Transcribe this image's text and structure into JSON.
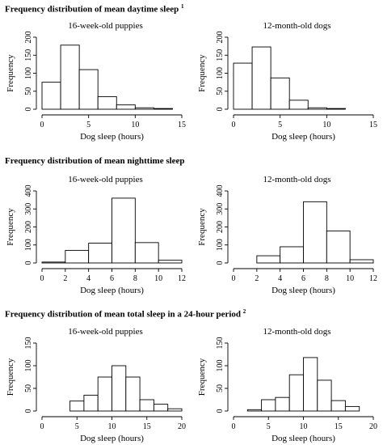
{
  "sections": [
    {
      "title": "Frequency distribution of mean daytime sleep",
      "note": "1"
    },
    {
      "title": "Frequency distribution of mean nighttime sleep",
      "note": ""
    },
    {
      "title": "Frequency distribution of mean total sleep in a 24-hour period",
      "note": "2"
    }
  ],
  "chart_data": [
    {
      "type": "bar",
      "title": "16-week-old puppies",
      "xlabel": "Dog sleep (hours)",
      "ylabel": "Frequency",
      "xlim": [
        0,
        15
      ],
      "ylim": [
        0,
        200
      ],
      "xticks": [
        0,
        5,
        10,
        15
      ],
      "yticks": [
        0,
        50,
        100,
        150,
        200
      ],
      "bins": [
        [
          0,
          2
        ],
        [
          2,
          4
        ],
        [
          4,
          6
        ],
        [
          6,
          8
        ],
        [
          8,
          10
        ],
        [
          10,
          12
        ],
        [
          12,
          14
        ]
      ],
      "values": [
        75,
        178,
        110,
        35,
        12,
        4,
        2
      ]
    },
    {
      "type": "bar",
      "title": "12-month-old dogs",
      "xlabel": "Dog sleep (hours)",
      "ylabel": "Frequency",
      "xlim": [
        0,
        15
      ],
      "ylim": [
        0,
        200
      ],
      "xticks": [
        0,
        5,
        10,
        15
      ],
      "yticks": [
        0,
        50,
        100,
        150,
        200
      ],
      "bins": [
        [
          0,
          2
        ],
        [
          2,
          4
        ],
        [
          4,
          6
        ],
        [
          6,
          8
        ],
        [
          8,
          10
        ],
        [
          10,
          12
        ]
      ],
      "values": [
        128,
        173,
        87,
        25,
        4,
        2
      ]
    },
    {
      "type": "bar",
      "title": "16-week-old puppies",
      "xlabel": "Dog sleep (hours)",
      "ylabel": "Frequency",
      "xlim": [
        0,
        12
      ],
      "ylim": [
        0,
        400
      ],
      "xticks": [
        0,
        2,
        4,
        6,
        8,
        10,
        12
      ],
      "yticks": [
        0,
        100,
        200,
        300,
        400
      ],
      "bins": [
        [
          0,
          2
        ],
        [
          2,
          4
        ],
        [
          4,
          6
        ],
        [
          6,
          8
        ],
        [
          8,
          10
        ],
        [
          10,
          12
        ]
      ],
      "values": [
        5,
        70,
        110,
        360,
        113,
        15
      ]
    },
    {
      "type": "bar",
      "title": "12-month-old dogs",
      "xlabel": "Dog sleep (hours)",
      "ylabel": "Frequency",
      "xlim": [
        0,
        12
      ],
      "ylim": [
        0,
        400
      ],
      "xticks": [
        0,
        2,
        4,
        6,
        8,
        10,
        12
      ],
      "yticks": [
        0,
        100,
        200,
        300,
        400
      ],
      "bins": [
        [
          2,
          4
        ],
        [
          4,
          6
        ],
        [
          6,
          8
        ],
        [
          8,
          10
        ],
        [
          10,
          12
        ]
      ],
      "values": [
        40,
        90,
        340,
        178,
        18
      ]
    },
    {
      "type": "bar",
      "title": "16-week-old puppies",
      "xlabel": "Dog sleep (hours)",
      "ylabel": "Frequency",
      "xlim": [
        0,
        20
      ],
      "ylim": [
        0,
        150
      ],
      "xticks": [
        0,
        5,
        10,
        15,
        20
      ],
      "yticks": [
        0,
        50,
        100,
        150
      ],
      "bins": [
        [
          4,
          6
        ],
        [
          6,
          8
        ],
        [
          8,
          10
        ],
        [
          10,
          12
        ],
        [
          12,
          14
        ],
        [
          14,
          16
        ],
        [
          16,
          18
        ],
        [
          18,
          20
        ]
      ],
      "values": [
        22,
        35,
        75,
        100,
        75,
        25,
        15,
        5
      ]
    },
    {
      "type": "bar",
      "title": "12-month-old dogs",
      "xlabel": "Dog sleep (hours)",
      "ylabel": "Frequency",
      "xlim": [
        0,
        20
      ],
      "ylim": [
        0,
        150
      ],
      "xticks": [
        0,
        5,
        10,
        15,
        20
      ],
      "yticks": [
        0,
        50,
        100,
        150
      ],
      "bins": [
        [
          2,
          4
        ],
        [
          4,
          6
        ],
        [
          6,
          8
        ],
        [
          8,
          10
        ],
        [
          10,
          12
        ],
        [
          12,
          14
        ],
        [
          14,
          16
        ],
        [
          16,
          18
        ]
      ],
      "values": [
        3,
        25,
        30,
        80,
        118,
        68,
        23,
        10
      ]
    }
  ]
}
